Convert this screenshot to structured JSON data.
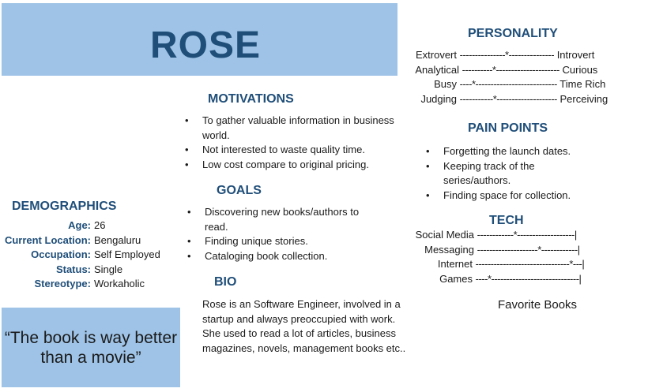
{
  "persona": {
    "name": "ROSE",
    "quote": "“The book is way better than a movie”"
  },
  "motivations": {
    "heading": "MOTIVATIONS",
    "items": [
      "To gather valuable information in business world.",
      "Not interested to waste quality time.",
      "Low cost compare to original pricing."
    ]
  },
  "goals": {
    "heading": "GOALS",
    "items": [
      "Discovering new books/authors to read.",
      "Finding unique stories.",
      "Cataloging book collection."
    ]
  },
  "bio": {
    "heading": "BIO",
    "text": "Rose is an Software Engineer, involved in a startup and always preoccupied with work. She used to read a lot of articles, business magazines, novels, management books etc.."
  },
  "demographics": {
    "heading": "DEMOGRAPHICS",
    "rows": [
      {
        "label": "Age:",
        "value": "26"
      },
      {
        "label": "Current Location:",
        "value": "Bengaluru"
      },
      {
        "label": "Occupation:",
        "value": "Self Employed"
      },
      {
        "label": "Status:",
        "value": "Single"
      },
      {
        "label": "Stereotype:",
        "value": "Workaholic"
      }
    ]
  },
  "personality": {
    "heading": "PERSONALITY",
    "rows": [
      {
        "left": "Extrovert",
        "line": "---------------*---------------",
        "right": "Introvert"
      },
      {
        "left": "Analytical",
        "line": "----------*---------------------",
        "right": "Curious"
      },
      {
        "left": "Busy",
        "line": "----*---------------------------",
        "right": "Time Rich"
      },
      {
        "left": "Judging",
        "line": "-----------*--------------------",
        "right": "Perceiving"
      }
    ]
  },
  "pain_points": {
    "heading": "PAIN POINTS",
    "items": [
      "Forgetting the launch dates.",
      "Keeping track of the series/authors.",
      "Finding space for collection."
    ]
  },
  "tech": {
    "heading": "TECH",
    "rows": [
      {
        "label": "Social Media",
        "line": "------------*-------------------|"
      },
      {
        "label": "Messaging",
        "line": "--------------------*------------|"
      },
      {
        "label": "Internet",
        "line": "-------------------------------*---|"
      },
      {
        "label": "Games",
        "line": "----*-----------------------------|"
      }
    ]
  },
  "favorite_books": {
    "heading": "Favorite Books"
  }
}
